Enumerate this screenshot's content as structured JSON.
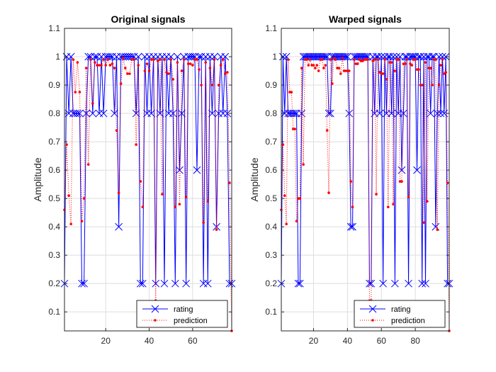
{
  "chart_data": [
    {
      "type": "line",
      "title": "Original signals",
      "xlabel": "",
      "ylabel": "Amplitude",
      "xlim": [
        1,
        78
      ],
      "ylim": [
        0.033,
        1.1
      ],
      "xticks": [
        20,
        40,
        60
      ],
      "yticks": [
        0.1,
        0.2,
        0.3,
        0.4,
        0.5,
        0.6,
        0.7,
        0.8,
        0.9,
        1,
        1.1
      ],
      "grid": true,
      "legend_position": "bottom-right",
      "series": [
        {
          "name": "rating",
          "color": "#0000ff",
          "style": "solid",
          "marker": "x",
          "values": [
            0.2,
            1,
            0.8,
            1,
            0.8,
            0.8,
            0.8,
            0.8,
            0.2,
            0.2,
            0.8,
            1,
            1,
            0.8,
            1,
            1,
            0.8,
            1,
            0.8,
            1,
            1,
            1,
            1,
            0.8,
            1,
            0.4,
            1,
            1,
            1,
            1,
            1,
            1,
            1,
            0.8,
            1,
            0.2,
            0.2,
            1,
            0.8,
            1,
            0.8,
            1,
            0.2,
            1,
            0.8,
            1,
            0.2,
            1,
            0.8,
            1,
            0.8,
            0.2,
            1,
            0.6,
            0.8,
            1,
            0.2,
            1,
            1,
            1,
            1,
            0.6,
            1,
            1,
            0.2,
            1,
            0.2,
            1,
            0.8,
            1,
            0.4,
            0.8,
            1,
            0.8,
            1,
            0.8,
            0.2,
            0.2
          ]
        },
        {
          "name": "prediction",
          "color": "#ff0000",
          "style": "dotted",
          "marker": "dot",
          "values": [
            0.46,
            0.69,
            0.51,
            0.41,
            0.99,
            0.875,
            0.98,
            0.875,
            0.42,
            0.5,
            0.96,
            0.62,
            0.99,
            0.835,
            0.98,
            0.97,
            0.97,
            0.97,
            0.99,
            0.97,
            0.99,
            0.97,
            0.975,
            0.96,
            0.74,
            0.52,
            0.905,
            0.995,
            0.96,
            0.94,
            0.94,
            0.99,
            0.99,
            0.69,
            0.97,
            0.56,
            0.47,
            0.95,
            0.975,
            0.95,
            0.99,
            0.99,
            0.14,
            0.985,
            0.99,
            0.515,
            0.99,
            0.945,
            0.94,
            0.99,
            0.92,
            0.47,
            0.98,
            0.48,
            0.95,
            0.99,
            0.505,
            0.975,
            0.975,
            0.97,
            0.99,
            0.99,
            0.955,
            0.9,
            0.415,
            0.98,
            0.49,
            0.96,
            0.9,
            0.99,
            0.39,
            0.9,
            0.97,
            0.99,
            0.94,
            0.945,
            0.555,
            0.033
          ]
        }
      ]
    },
    {
      "type": "line",
      "title": "Warped signals",
      "xlabel": "",
      "ylabel": "Amplitude",
      "xlim": [
        1,
        100
      ],
      "ylim": [
        0.033,
        1.1
      ],
      "xticks": [
        20,
        40,
        60,
        80
      ],
      "yticks": [
        0.1,
        0.2,
        0.3,
        0.4,
        0.5,
        0.6,
        0.7,
        0.8,
        0.9,
        1,
        1.1
      ],
      "grid": true,
      "legend_position": "bottom-right",
      "series": [
        {
          "name": "rating",
          "color": "#0000ff",
          "style": "solid",
          "marker": "x",
          "values": [
            0.2,
            1,
            0.8,
            1,
            0.8,
            0.8,
            0.8,
            0.8,
            0.8,
            0.8,
            0.2,
            0.2,
            0.8,
            1,
            1,
            1,
            1,
            1,
            1,
            1,
            1,
            1,
            1,
            1,
            1,
            1,
            1,
            1,
            0.8,
            0.8,
            1,
            1,
            1,
            1,
            1,
            1,
            1,
            1,
            1,
            1,
            0.8,
            0.4,
            0.4,
            1,
            1,
            1,
            1,
            1,
            1,
            1,
            1,
            1,
            0.2,
            0.2,
            1,
            0.8,
            1,
            1,
            0.8,
            1,
            0.2,
            1,
            0.8,
            1,
            1,
            0.8,
            1,
            0.2,
            1,
            0.8,
            1,
            0.6,
            0.8,
            1,
            1,
            0.2,
            1,
            1,
            1,
            1,
            0.6,
            1,
            1,
            0.2,
            1,
            0.2,
            1,
            1,
            0.8,
            1,
            1,
            0.4,
            0.8,
            1,
            0.8,
            1,
            0.8,
            1,
            0.2,
            0.2
          ]
        },
        {
          "name": "prediction",
          "color": "#ff0000",
          "style": "dotted",
          "marker": "dot",
          "values": [
            0.46,
            0.69,
            0.51,
            0.41,
            0.99,
            0.875,
            0.875,
            0.745,
            0.745,
            0.42,
            0.5,
            0.5,
            0.96,
            0.62,
            0.99,
            0.99,
            0.97,
            0.99,
            0.97,
            0.97,
            0.96,
            0.97,
            0.95,
            0.99,
            0.99,
            0.96,
            0.97,
            0.74,
            0.52,
            0.99,
            0.905,
            0.995,
            0.99,
            0.96,
            0.96,
            0.94,
            0.995,
            0.95,
            0.95,
            0.95,
            0.95,
            0.56,
            0.47,
            0.99,
            0.975,
            0.975,
            0.99,
            0.985,
            0.985,
            0.99,
            0.99,
            0.99,
            0.14,
            0.14,
            0.985,
            0.99,
            0.515,
            0.99,
            0.945,
            0.94,
            0.94,
            0.99,
            0.92,
            0.47,
            0.98,
            0.98,
            0.48,
            0.95,
            0.99,
            0.99,
            0.56,
            0.56,
            0.975,
            0.975,
            0.99,
            0.505,
            0.975,
            0.97,
            0.99,
            0.99,
            0.955,
            0.955,
            0.9,
            0.9,
            0.415,
            0.98,
            0.49,
            0.96,
            0.96,
            0.9,
            0.99,
            0.99,
            0.39,
            0.9,
            0.97,
            0.99,
            0.94,
            0.945,
            0.555,
            0.033
          ]
        }
      ]
    }
  ]
}
